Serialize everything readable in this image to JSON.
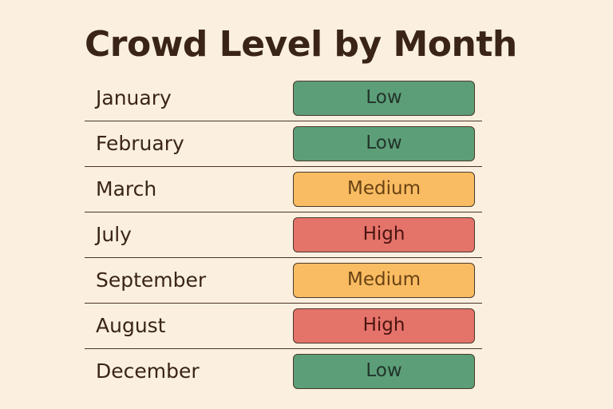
{
  "title": "Crowd Level by Month",
  "rows": [
    {
      "month": "January",
      "level": "Low"
    },
    {
      "month": "February",
      "level": "Low"
    },
    {
      "month": "March",
      "level": "Medium"
    },
    {
      "month": "July",
      "level": "High"
    },
    {
      "month": "September",
      "level": "Medium"
    },
    {
      "month": "August",
      "level": "High"
    },
    {
      "month": "December",
      "level": "Low"
    }
  ],
  "colors": {
    "background": "#fbf0e0",
    "low": "#5c9e78",
    "medium": "#f9bc62",
    "high": "#e4736a",
    "text": "#3a2418"
  }
}
